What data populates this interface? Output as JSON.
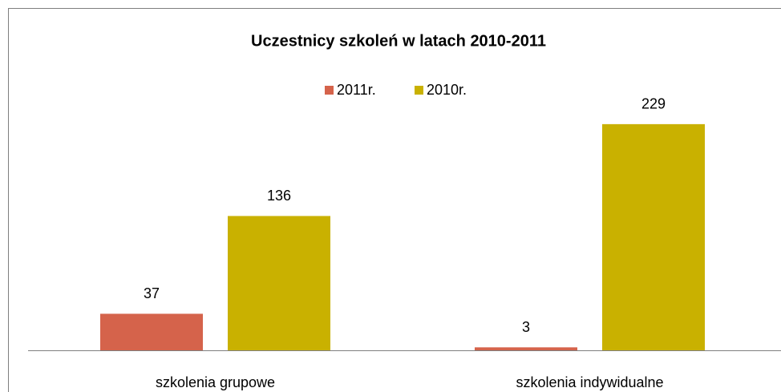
{
  "chart_data": {
    "type": "bar",
    "title": "Uczestnicy szkoleń w latach 2010-2011",
    "categories": [
      "szkolenia grupowe",
      "szkolenia indywidualne"
    ],
    "series": [
      {
        "name": "2011r.",
        "color": "#d5634b",
        "values": [
          37,
          3
        ]
      },
      {
        "name": "2010r.",
        "color": "#c9b100",
        "values": [
          136,
          229
        ]
      }
    ],
    "legend": "top",
    "grid": false
  }
}
